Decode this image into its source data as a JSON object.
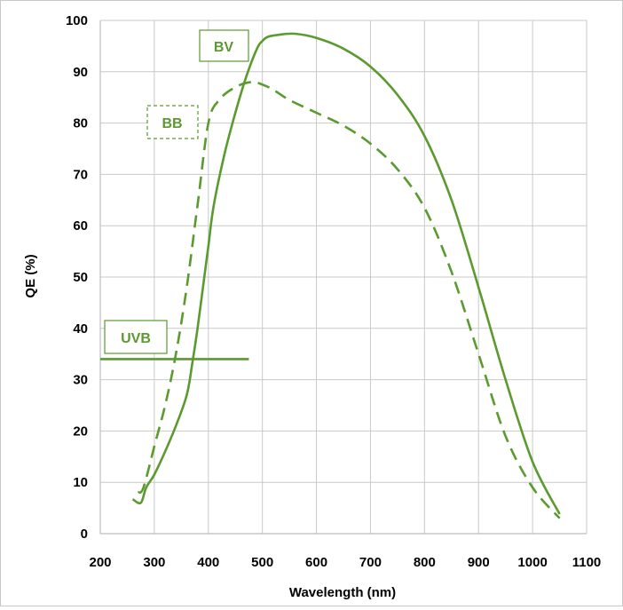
{
  "chart_data": {
    "type": "line",
    "title": "",
    "xlabel": "Wavelength (nm)",
    "ylabel": "QE (%)",
    "xlim": [
      200,
      1100
    ],
    "ylim": [
      0,
      100
    ],
    "x_ticks": [
      "200",
      "300",
      "400",
      "500",
      "600",
      "700",
      "800",
      "900",
      "1000",
      "1100"
    ],
    "y_ticks": [
      "0",
      "10",
      "20",
      "30",
      "40",
      "50",
      "60",
      "70",
      "80",
      "90",
      "100"
    ],
    "grid": true,
    "line_color": "#5a9a2e",
    "series": [
      {
        "name": "BV",
        "style": "solid",
        "x": [
          260,
          275,
          285,
          300,
          320,
          340,
          360,
          370,
          380,
          390,
          400,
          410,
          430,
          450,
          470,
          490,
          500,
          510,
          530,
          560,
          600,
          650,
          700,
          750,
          800,
          850,
          900,
          950,
          1000,
          1050
        ],
        "y": [
          6.7,
          6,
          9,
          11.5,
          16,
          21,
          27,
          33,
          40,
          48,
          56,
          64,
          74,
          82,
          89,
          94.5,
          96,
          96.8,
          97.2,
          97.4,
          96.6,
          94.5,
          91,
          85.5,
          77.5,
          65,
          48,
          30,
          14,
          3.8
        ]
      },
      {
        "name": "BB",
        "style": "dashed",
        "x": [
          270,
          280,
          300,
          320,
          340,
          360,
          380,
          400,
          420,
          450,
          480,
          500,
          520,
          550,
          600,
          650,
          700,
          750,
          800,
          850,
          900,
          950,
          1000,
          1050
        ],
        "y": [
          8,
          9,
          17,
          25,
          35,
          48,
          64,
          80,
          84.5,
          87,
          88,
          87.5,
          86.5,
          84.5,
          82,
          79.5,
          76,
          71,
          63.5,
          51,
          35,
          19,
          9,
          3
        ]
      },
      {
        "name": "UVB",
        "style": "solid",
        "x": [
          200,
          475
        ],
        "y": [
          34,
          34
        ]
      }
    ]
  },
  "labels": {
    "bv": "BV",
    "bb": "BB",
    "uvb": "UVB"
  }
}
